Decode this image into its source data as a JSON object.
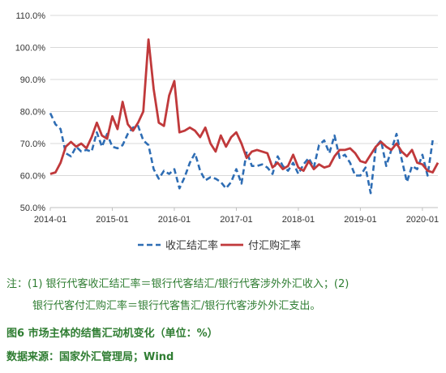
{
  "chart_data": {
    "type": "line",
    "x_ticks": [
      "2014-01",
      "2015-01",
      "2016-01",
      "2017-01",
      "2018-01",
      "2019-01",
      "2020-01"
    ],
    "y_ticks": [
      "50.0%",
      "60.0%",
      "70.0%",
      "80.0%",
      "90.0%",
      "100.0%",
      "110.0%"
    ],
    "ylim": [
      50,
      110
    ],
    "x_range": [
      "2014-01",
      "2020-04"
    ],
    "grid": "horizontal",
    "legend": "bottom-center",
    "series": [
      {
        "name": "收汇结汇率",
        "color": "#2e6db4",
        "style": "dashed",
        "x": [
          "2014-01",
          "2014-02",
          "2014-03",
          "2014-04",
          "2014-05",
          "2014-06",
          "2014-07",
          "2014-08",
          "2014-09",
          "2014-10",
          "2014-11",
          "2014-12",
          "2015-01",
          "2015-02",
          "2015-03",
          "2015-04",
          "2015-05",
          "2015-06",
          "2015-07",
          "2015-08",
          "2015-09",
          "2015-10",
          "2015-11",
          "2015-12",
          "2016-01",
          "2016-02",
          "2016-03",
          "2016-04",
          "2016-05",
          "2016-06",
          "2016-07",
          "2016-08",
          "2016-09",
          "2016-10",
          "2016-11",
          "2016-12",
          "2017-01",
          "2017-02",
          "2017-03",
          "2017-04",
          "2017-05",
          "2017-06",
          "2017-07",
          "2017-08",
          "2017-09",
          "2017-10",
          "2017-11",
          "2017-12",
          "2018-01",
          "2018-02",
          "2018-03",
          "2018-04",
          "2018-05",
          "2018-06",
          "2018-07",
          "2018-08",
          "2018-09",
          "2018-10",
          "2018-11",
          "2018-12",
          "2019-01",
          "2019-02",
          "2019-03",
          "2019-04",
          "2019-05",
          "2019-06",
          "2019-07",
          "2019-08",
          "2019-09",
          "2019-10",
          "2019-11",
          "2019-12",
          "2020-01",
          "2020-02",
          "2020-03"
        ],
        "values": [
          79.5,
          76.0,
          74.5,
          67.0,
          66.0,
          69.0,
          67.5,
          68.0,
          67.5,
          73.5,
          69.0,
          73.0,
          69.0,
          68.5,
          69.5,
          73.0,
          75.0,
          75.5,
          71.0,
          69.5,
          62.0,
          59.0,
          61.5,
          60.5,
          62.0,
          56.0,
          59.5,
          64.0,
          67.0,
          61.5,
          58.5,
          59.5,
          59.0,
          58.0,
          56.0,
          58.0,
          62.0,
          57.5,
          67.5,
          63.0,
          63.0,
          63.5,
          62.5,
          60.5,
          66.0,
          63.0,
          61.5,
          64.0,
          60.5,
          63.5,
          65.5,
          62.5,
          69.5,
          71.0,
          67.0,
          72.5,
          65.5,
          66.5,
          64.0,
          60.0,
          60.0,
          62.5,
          54.5,
          69.0,
          71.0,
          63.0,
          68.0,
          73.0,
          65.0,
          58.0,
          63.0,
          62.0,
          66.5,
          60.0,
          71.0
        ]
      },
      {
        "name": "付汇购汇率",
        "color": "#c0393b",
        "style": "solid",
        "x": [
          "2014-01",
          "2014-02",
          "2014-03",
          "2014-04",
          "2014-05",
          "2014-06",
          "2014-07",
          "2014-08",
          "2014-09",
          "2014-10",
          "2014-11",
          "2014-12",
          "2015-01",
          "2015-02",
          "2015-03",
          "2015-04",
          "2015-05",
          "2015-06",
          "2015-07",
          "2015-08",
          "2015-09",
          "2015-10",
          "2015-11",
          "2015-12",
          "2016-01",
          "2016-02",
          "2016-03",
          "2016-04",
          "2016-05",
          "2016-06",
          "2016-07",
          "2016-08",
          "2016-09",
          "2016-10",
          "2016-11",
          "2016-12",
          "2017-01",
          "2017-02",
          "2017-03",
          "2017-04",
          "2017-05",
          "2017-06",
          "2017-07",
          "2017-08",
          "2017-09",
          "2017-10",
          "2017-11",
          "2017-12",
          "2018-01",
          "2018-02",
          "2018-03",
          "2018-04",
          "2018-05",
          "2018-06",
          "2018-07",
          "2018-08",
          "2018-09",
          "2018-10",
          "2018-11",
          "2018-12",
          "2019-01",
          "2019-02",
          "2019-03",
          "2019-04",
          "2019-05",
          "2019-06",
          "2019-07",
          "2019-08",
          "2019-09",
          "2019-10",
          "2019-11",
          "2019-12",
          "2020-01",
          "2020-02",
          "2020-03",
          "2020-04"
        ],
        "values": [
          60.5,
          61.0,
          64.0,
          69.0,
          70.5,
          69.0,
          70.0,
          68.5,
          72.0,
          76.5,
          72.5,
          71.5,
          78.5,
          74.5,
          83.0,
          76.0,
          74.0,
          76.5,
          80.0,
          102.5,
          87.0,
          76.5,
          75.5,
          85.0,
          89.5,
          73.5,
          74.0,
          75.0,
          74.0,
          72.0,
          75.0,
          70.0,
          67.5,
          72.5,
          69.0,
          72.0,
          73.5,
          70.0,
          65.5,
          67.5,
          68.0,
          67.5,
          67.0,
          62.5,
          64.0,
          62.0,
          63.0,
          66.5,
          62.5,
          61.5,
          64.5,
          62.0,
          63.5,
          62.5,
          63.0,
          66.0,
          68.0,
          68.0,
          68.5,
          67.0,
          64.5,
          64.0,
          66.5,
          69.0,
          70.5,
          69.0,
          68.0,
          70.0,
          67.5,
          66.0,
          68.0,
          64.0,
          63.5,
          61.5,
          61.0,
          64.0
        ]
      }
    ]
  },
  "notes": {
    "line1": "注：(1) 银行代客收汇结汇率＝银行代客结汇/银行代客涉外外汇收入；(2)",
    "line2": "银行代客付汇购汇率＝银行代客售汇/银行代客涉外外汇支出。",
    "figure_caption": "图6   市场主体的结售汇动机变化（单位：%）",
    "source": "数据来源：国家外汇管理局；Wind"
  }
}
